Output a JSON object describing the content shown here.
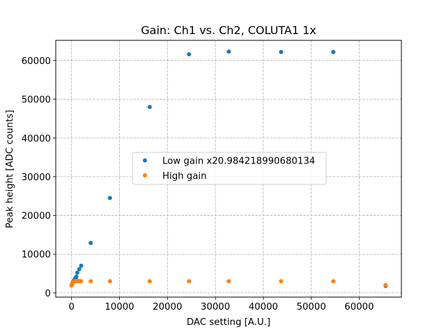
{
  "chart_data": {
    "type": "scatter",
    "title": "Gain: Ch1 vs. Ch2, COLUTA1 1x",
    "xlabel": "DAC setting [A.U.]",
    "ylabel": "Peak height [ADC counts]",
    "xlim": [
      -3300,
      68800
    ],
    "ylim": [
      -1100,
      65200
    ],
    "xticks": [
      0,
      10000,
      20000,
      30000,
      40000,
      50000,
      60000
    ],
    "yticks": [
      0,
      10000,
      20000,
      30000,
      40000,
      50000,
      60000
    ],
    "grid": true,
    "legend_position": "center-left",
    "series": [
      {
        "name": "Low gain x20.984218990680134",
        "color": "#1f77b4",
        "x": [
          0,
          100,
          200,
          300,
          400,
          500,
          600,
          700,
          800,
          900,
          1000,
          1200,
          1600,
          2000,
          4000,
          8000,
          16300,
          24500,
          32800,
          43700,
          54600,
          65500
        ],
        "y": [
          1950,
          2300,
          2550,
          2800,
          3000,
          3200,
          3400,
          3600,
          3800,
          4000,
          4200,
          5200,
          6100,
          7000,
          12900,
          24500,
          48000,
          61600,
          62300,
          62200,
          62200,
          1800
        ]
      },
      {
        "name": "High gain",
        "color": "#ff7f0e",
        "x": [
          0,
          100,
          200,
          300,
          400,
          500,
          600,
          700,
          800,
          900,
          1000,
          1200,
          1400,
          1600,
          1800,
          2000,
          4000,
          8000,
          16300,
          24500,
          32800,
          43700,
          54600,
          65500
        ],
        "y": [
          1950,
          2200,
          2500,
          2700,
          2850,
          2950,
          3000,
          3000,
          3000,
          3000,
          3000,
          3000,
          3000,
          3000,
          3000,
          3000,
          3000,
          3000,
          3000,
          3000,
          3000,
          3000,
          3000,
          2000
        ]
      }
    ]
  }
}
